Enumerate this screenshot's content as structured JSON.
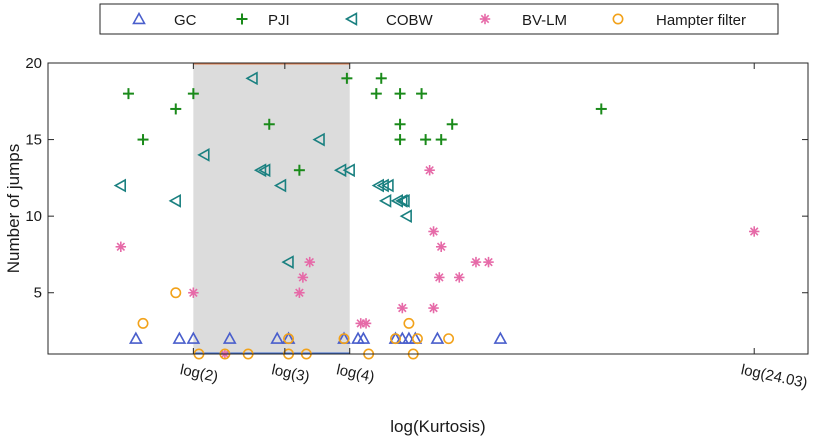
{
  "chart_data": {
    "type": "scatter",
    "title": "",
    "xlabel": "log(Kurtosis)",
    "ylabel": "Number of jumps",
    "xscale": "log",
    "xlim": [
      1.05,
      30.5
    ],
    "ylim": [
      1,
      20
    ],
    "y_ticks": [
      5,
      10,
      15,
      20
    ],
    "x_ticks": [
      {
        "value": 2,
        "label": "log(2)"
      },
      {
        "value": 3,
        "label": "log(3)"
      },
      {
        "value": 4,
        "label": "log(4)"
      },
      {
        "value": 24.03,
        "label": "log(24.03)"
      }
    ],
    "shaded_region": {
      "x0": 2,
      "x1": 4,
      "y0": 1,
      "y1": 20,
      "color": "#dcdcdc"
    },
    "legend_position": "top",
    "series": [
      {
        "name": "GC",
        "marker": "triangle-up",
        "color": "#4a5fcc",
        "points": [
          [
            1.55,
            2
          ],
          [
            1.88,
            2
          ],
          [
            2.0,
            2
          ],
          [
            2.35,
            2
          ],
          [
            2.9,
            2
          ],
          [
            3.05,
            2
          ],
          [
            3.9,
            2
          ],
          [
            4.15,
            2
          ],
          [
            4.25,
            2
          ],
          [
            4.9,
            2
          ],
          [
            5.05,
            2
          ],
          [
            5.2,
            2
          ],
          [
            5.35,
            2
          ],
          [
            5.9,
            2
          ],
          [
            7.8,
            2
          ]
        ]
      },
      {
        "name": "PJI",
        "marker": "plus",
        "color": "#1a8a1a",
        "points": [
          [
            1.5,
            18
          ],
          [
            1.6,
            15
          ],
          [
            1.85,
            17
          ],
          [
            2.0,
            18
          ],
          [
            2.8,
            16
          ],
          [
            3.2,
            13
          ],
          [
            3.95,
            19
          ],
          [
            4.5,
            18
          ],
          [
            4.6,
            19
          ],
          [
            5.0,
            18
          ],
          [
            5.0,
            16
          ],
          [
            5.0,
            15
          ],
          [
            5.5,
            18
          ],
          [
            5.6,
            15
          ],
          [
            6.0,
            15
          ],
          [
            6.3,
            16
          ],
          [
            12.2,
            17
          ]
        ]
      },
      {
        "name": "COBW",
        "marker": "triangle-left",
        "color": "#1a8080",
        "points": [
          [
            1.45,
            12
          ],
          [
            1.85,
            11
          ],
          [
            2.1,
            14
          ],
          [
            2.6,
            19
          ],
          [
            2.7,
            13
          ],
          [
            2.75,
            13
          ],
          [
            2.95,
            12
          ],
          [
            3.05,
            7
          ],
          [
            3.5,
            15
          ],
          [
            3.85,
            13
          ],
          [
            4.0,
            13
          ],
          [
            4.55,
            12
          ],
          [
            4.65,
            12
          ],
          [
            4.75,
            12
          ],
          [
            4.7,
            11
          ],
          [
            4.95,
            11
          ],
          [
            5.05,
            11
          ],
          [
            5.1,
            11
          ],
          [
            5.15,
            10
          ]
        ]
      },
      {
        "name": "BV-LM",
        "marker": "asterisk",
        "color": "#e66aa8",
        "points": [
          [
            1.45,
            8
          ],
          [
            2.0,
            5
          ],
          [
            2.3,
            1
          ],
          [
            3.2,
            5
          ],
          [
            3.25,
            6
          ],
          [
            3.35,
            7
          ],
          [
            4.2,
            3
          ],
          [
            4.3,
            3
          ],
          [
            5.05,
            4
          ],
          [
            5.7,
            13
          ],
          [
            5.8,
            9
          ],
          [
            5.8,
            4
          ],
          [
            5.95,
            6
          ],
          [
            6.0,
            8
          ],
          [
            6.5,
            6
          ],
          [
            7.0,
            7
          ],
          [
            7.4,
            7
          ],
          [
            24.03,
            9
          ]
        ]
      },
      {
        "name": "Hampter filter",
        "marker": "circle",
        "color": "#f2a21a",
        "points": [
          [
            1.6,
            3
          ],
          [
            1.85,
            5
          ],
          [
            2.05,
            1
          ],
          [
            2.3,
            1
          ],
          [
            2.55,
            1
          ],
          [
            3.05,
            1
          ],
          [
            3.05,
            2
          ],
          [
            3.3,
            1
          ],
          [
            3.9,
            2
          ],
          [
            4.35,
            1
          ],
          [
            4.9,
            2
          ],
          [
            5.2,
            3
          ],
          [
            5.3,
            1
          ],
          [
            5.4,
            2
          ],
          [
            6.2,
            2
          ]
        ]
      }
    ]
  }
}
